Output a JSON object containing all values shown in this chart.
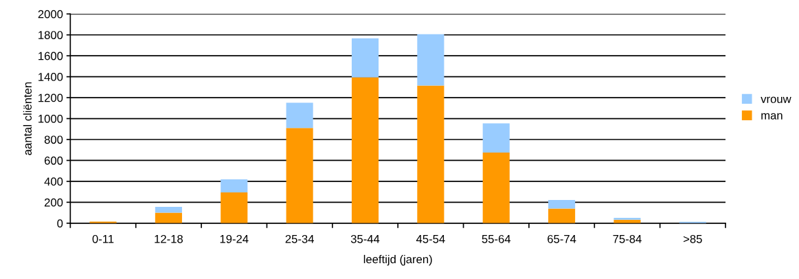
{
  "chart_data": {
    "type": "bar",
    "stacked": true,
    "xlabel": "leeftijd (jaren)",
    "ylabel": "aantal cliënten",
    "categories": [
      "0-11",
      "12-18",
      "19-24",
      "25-34",
      "35-44",
      "45-54",
      "55-64",
      "65-74",
      "75-84",
      ">85"
    ],
    "series": [
      {
        "name": "man",
        "color": "#ff9900",
        "values": [
          15,
          100,
          295,
          910,
          1395,
          1315,
          675,
          140,
          33,
          null
        ]
      },
      {
        "name": "vrouw",
        "color": "#99ccff",
        "values": [
          null,
          57,
          124,
          242,
          372,
          491,
          280,
          82,
          19,
          13
        ]
      }
    ],
    "ylim": [
      0,
      2000
    ],
    "yticks": [
      0,
      200,
      400,
      600,
      800,
      1000,
      1200,
      1400,
      1600,
      1800,
      2000
    ],
    "grid": "y",
    "legend": "right"
  }
}
